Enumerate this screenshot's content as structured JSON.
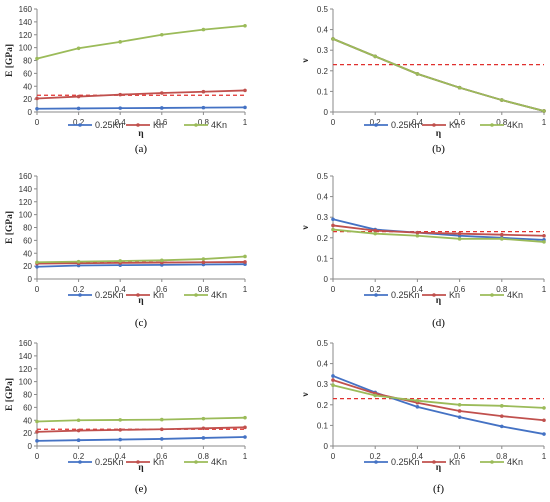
{
  "chart_data": [
    {
      "type": "line",
      "panel_label": "(a)",
      "xlabel": "η",
      "ylabel": "E [GPa]",
      "xlim": [
        0,
        1
      ],
      "ylim": [
        0,
        160
      ],
      "xticks": [
        "0",
        "0.2",
        "0.4",
        "0.6",
        "0.8",
        "1"
      ],
      "yticks": [
        "0",
        "20",
        "40",
        "60",
        "80",
        "100",
        "120",
        "140",
        "160"
      ],
      "x": [
        0,
        0.2,
        0.4,
        0.6,
        0.8,
        1
      ],
      "series": [
        {
          "name": "0.25Kn",
          "color": "#4472c4",
          "values": [
            5,
            5.5,
            6,
            6.3,
            6.8,
            7.2
          ]
        },
        {
          "name": "Kn",
          "color": "#c0504d",
          "values": [
            21,
            24,
            27,
            29.5,
            31.5,
            33.5
          ]
        },
        {
          "name": "4Kn",
          "color": "#9bbb59",
          "values": [
            83,
            99,
            109,
            120,
            128,
            134
          ]
        }
      ],
      "reference_line": {
        "value": 26,
        "color": "#e0302e"
      },
      "grid": false,
      "legend_position": "bottom"
    },
    {
      "type": "line",
      "panel_label": "(b)",
      "xlabel": "η",
      "ylabel": "ν",
      "xlim": [
        0,
        1
      ],
      "ylim": [
        0,
        0.5
      ],
      "xticks": [
        "0",
        "0.2",
        "0.4",
        "0.6",
        "0.8",
        "1"
      ],
      "yticks": [
        "0",
        "0.1",
        "0.2",
        "0.3",
        "0.4",
        "0.5"
      ],
      "x": [
        0,
        0.2,
        0.4,
        0.6,
        0.8,
        1
      ],
      "series": [
        {
          "name": "0.25Kn",
          "color": "#4472c4",
          "values": [
            0.355,
            0.27,
            0.185,
            0.118,
            0.058,
            0.005
          ]
        },
        {
          "name": "Kn",
          "color": "#c0504d",
          "values": [
            0.355,
            0.27,
            0.185,
            0.118,
            0.058,
            0.005
          ]
        },
        {
          "name": "4Kn",
          "color": "#9bbb59",
          "values": [
            0.355,
            0.27,
            0.185,
            0.118,
            0.058,
            0.005
          ]
        }
      ],
      "reference_line": {
        "value": 0.23,
        "color": "#e0302e"
      },
      "grid": false,
      "legend_position": "bottom"
    },
    {
      "type": "line",
      "panel_label": "(c)",
      "xlabel": "η",
      "ylabel": "E [GPa]",
      "xlim": [
        0,
        1
      ],
      "ylim": [
        0,
        160
      ],
      "xticks": [
        "0",
        "0.2",
        "0.4",
        "0.6",
        "0.8",
        "1"
      ],
      "yticks": [
        "0",
        "20",
        "40",
        "60",
        "80",
        "100",
        "120",
        "140",
        "160"
      ],
      "x": [
        0,
        0.2,
        0.4,
        0.6,
        0.8,
        1
      ],
      "series": [
        {
          "name": "0.25Kn",
          "color": "#4472c4",
          "values": [
            19,
            21,
            21.5,
            22,
            22.5,
            23
          ]
        },
        {
          "name": "Kn",
          "color": "#c0504d",
          "values": [
            24,
            24.5,
            25,
            25.5,
            26,
            26.5
          ]
        },
        {
          "name": "4Kn",
          "color": "#9bbb59",
          "values": [
            26,
            27,
            28,
            29,
            31,
            35
          ]
        }
      ],
      "reference_line": {
        "value": 26,
        "color": "#e0302e"
      },
      "grid": false,
      "legend_position": "bottom"
    },
    {
      "type": "line",
      "panel_label": "(d)",
      "xlabel": "η",
      "ylabel": "ν",
      "xlim": [
        0,
        1
      ],
      "ylim": [
        0,
        0.5
      ],
      "xticks": [
        "0",
        "0.2",
        "0.4",
        "0.6",
        "0.8",
        "1"
      ],
      "yticks": [
        "0",
        "0.1",
        "0.2",
        "0.3",
        "0.4",
        "0.5"
      ],
      "x": [
        0,
        0.2,
        0.4,
        0.6,
        0.8,
        1
      ],
      "series": [
        {
          "name": "0.25Kn",
          "color": "#4472c4",
          "values": [
            0.29,
            0.24,
            0.225,
            0.21,
            0.2,
            0.19
          ]
        },
        {
          "name": "Kn",
          "color": "#c0504d",
          "values": [
            0.26,
            0.235,
            0.225,
            0.22,
            0.215,
            0.21
          ]
        },
        {
          "name": "4Kn",
          "color": "#9bbb59",
          "values": [
            0.24,
            0.22,
            0.21,
            0.195,
            0.195,
            0.18
          ]
        }
      ],
      "reference_line": {
        "value": 0.23,
        "color": "#e0302e"
      },
      "grid": false,
      "legend_position": "bottom"
    },
    {
      "type": "line",
      "panel_label": "(e)",
      "xlabel": "η",
      "ylabel": "E [GPa]",
      "xlim": [
        0,
        1
      ],
      "ylim": [
        0,
        160
      ],
      "xticks": [
        "0",
        "0.2",
        "0.4",
        "0.6",
        "0.8",
        "1"
      ],
      "yticks": [
        "0",
        "20",
        "40",
        "60",
        "80",
        "100",
        "120",
        "140",
        "160"
      ],
      "x": [
        0,
        0.2,
        0.4,
        0.6,
        0.8,
        1
      ],
      "series": [
        {
          "name": "0.25Kn",
          "color": "#4472c4",
          "values": [
            8,
            9,
            10,
            11,
            12.5,
            14
          ]
        },
        {
          "name": "Kn",
          "color": "#c0504d",
          "values": [
            22,
            24,
            25,
            26,
            27.5,
            29
          ]
        },
        {
          "name": "4Kn",
          "color": "#9bbb59",
          "values": [
            38,
            40,
            40.5,
            41,
            42.5,
            44
          ]
        }
      ],
      "reference_line": {
        "value": 26,
        "color": "#e0302e"
      },
      "grid": false,
      "legend_position": "bottom"
    },
    {
      "type": "line",
      "panel_label": "(f)",
      "xlabel": "η",
      "ylabel": "ν",
      "xlim": [
        0,
        1
      ],
      "ylim": [
        0,
        0.5
      ],
      "xticks": [
        "0",
        "0.2",
        "0.4",
        "0.6",
        "0.8",
        "1"
      ],
      "yticks": [
        "0",
        "0.1",
        "0.2",
        "0.3",
        "0.4",
        "0.5"
      ],
      "x": [
        0,
        0.2,
        0.4,
        0.6,
        0.8,
        1
      ],
      "series": [
        {
          "name": "0.25Kn",
          "color": "#4472c4",
          "values": [
            0.34,
            0.26,
            0.19,
            0.14,
            0.095,
            0.058
          ]
        },
        {
          "name": "Kn",
          "color": "#c0504d",
          "values": [
            0.32,
            0.255,
            0.21,
            0.17,
            0.145,
            0.125
          ]
        },
        {
          "name": "4Kn",
          "color": "#9bbb59",
          "values": [
            0.295,
            0.245,
            0.22,
            0.2,
            0.195,
            0.185
          ]
        }
      ],
      "reference_line": {
        "value": 0.23,
        "color": "#e0302e"
      },
      "grid": false,
      "legend_position": "bottom"
    }
  ]
}
